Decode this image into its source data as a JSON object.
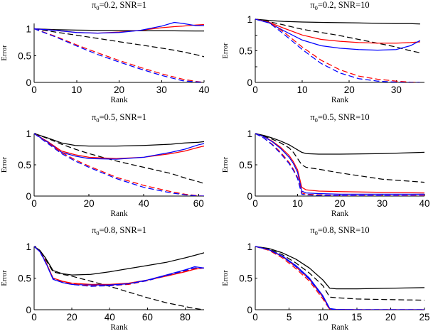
{
  "chart_data": [
    {
      "type": "line",
      "title": "π0=0.2, SNR=1",
      "title_symbol": "π",
      "title_subscript": "0",
      "title_rest": "=0.2, SNR=1",
      "xlabel": "Rank",
      "ylabel": "Error",
      "xlim": [
        0,
        40
      ],
      "ylim": [
        0,
        1.1
      ],
      "xticks": [
        0,
        10,
        20,
        30,
        40
      ],
      "yticks": [
        0,
        0.5,
        1
      ],
      "ytick_labels": [
        "0",
        "0.5",
        "1"
      ],
      "x": [
        0,
        5,
        10,
        15,
        20,
        25,
        30,
        33,
        35,
        38,
        40
      ],
      "series": [
        {
          "color": "#000000",
          "dash": "solid",
          "values": [
            1.0,
            0.985,
            0.975,
            0.97,
            0.967,
            0.965,
            0.963,
            0.962,
            0.961,
            0.96,
            0.96
          ]
        },
        {
          "color": "#000000",
          "dash": "dashed",
          "values": [
            1.0,
            0.94,
            0.88,
            0.82,
            0.76,
            0.7,
            0.64,
            0.6,
            0.57,
            0.52,
            0.48
          ]
        },
        {
          "color": "#ff0000",
          "dash": "solid",
          "values": [
            1.0,
            0.97,
            0.93,
            0.92,
            0.94,
            0.97,
            1.02,
            1.04,
            1.05,
            1.07,
            1.08
          ]
        },
        {
          "color": "#0000ff",
          "dash": "solid",
          "values": [
            1.0,
            0.97,
            0.93,
            0.92,
            0.93,
            0.97,
            1.05,
            1.12,
            1.1,
            1.06,
            1.06
          ]
        },
        {
          "color": "#ff0000",
          "dash": "dashed",
          "values": [
            1.0,
            0.86,
            0.7,
            0.55,
            0.41,
            0.28,
            0.16,
            0.1,
            0.06,
            0.02,
            0.0
          ]
        },
        {
          "color": "#0000ff",
          "dash": "dashed",
          "values": [
            1.0,
            0.85,
            0.68,
            0.52,
            0.38,
            0.25,
            0.13,
            0.07,
            0.03,
            0.01,
            0.0
          ]
        }
      ]
    },
    {
      "type": "line",
      "title": "π0=0.2, SNR=10",
      "title_symbol": "π",
      "title_subscript": "0",
      "title_rest": "=0.2, SNR=10",
      "xlabel": "Rank",
      "ylabel": "Error",
      "xlim": [
        0,
        36
      ],
      "ylim": [
        0,
        1
      ],
      "xticks": [
        0,
        10,
        20,
        30
      ],
      "yticks": [
        0,
        0.25,
        0.5,
        0.75,
        1
      ],
      "ytick_labels": [
        "0",
        "",
        "0.5",
        "",
        "1"
      ],
      "x": [
        0,
        3,
        6,
        10,
        14,
        18,
        22,
        26,
        30,
        33,
        35
      ],
      "series": [
        {
          "color": "#000000",
          "dash": "solid",
          "values": [
            1.0,
            0.98,
            0.965,
            0.955,
            0.95,
            0.945,
            0.94,
            0.935,
            0.93,
            0.93,
            0.925
          ]
        },
        {
          "color": "#000000",
          "dash": "dashed",
          "values": [
            1.0,
            0.96,
            0.91,
            0.84,
            0.79,
            0.74,
            0.68,
            0.62,
            0.56,
            0.5,
            0.47
          ]
        },
        {
          "color": "#ff0000",
          "dash": "solid",
          "values": [
            1.0,
            0.95,
            0.86,
            0.75,
            0.68,
            0.65,
            0.63,
            0.62,
            0.62,
            0.63,
            0.64
          ]
        },
        {
          "color": "#0000ff",
          "dash": "solid",
          "values": [
            1.0,
            0.94,
            0.82,
            0.67,
            0.58,
            0.54,
            0.52,
            0.51,
            0.52,
            0.58,
            0.66
          ]
        },
        {
          "color": "#ff0000",
          "dash": "dashed",
          "values": [
            1.0,
            0.95,
            0.8,
            0.56,
            0.35,
            0.2,
            0.1,
            0.05,
            0.02,
            0.005,
            0.0
          ]
        },
        {
          "color": "#0000ff",
          "dash": "dashed",
          "values": [
            1.0,
            0.94,
            0.77,
            0.52,
            0.3,
            0.15,
            0.06,
            0.02,
            0.005,
            0.0,
            0.0
          ]
        }
      ]
    },
    {
      "type": "line",
      "title": "π0=0.5, SNR=1",
      "title_symbol": "π",
      "title_subscript": "0",
      "title_rest": "=0.5, SNR=1",
      "xlabel": "Rank",
      "ylabel": "Error",
      "xlim": [
        0,
        62
      ],
      "ylim": [
        0,
        1
      ],
      "xticks": [
        0,
        20,
        40,
        60
      ],
      "yticks": [
        0,
        0.5,
        1
      ],
      "ytick_labels": [
        "0",
        "0.5",
        "1"
      ],
      "x": [
        0,
        5,
        10,
        15,
        20,
        30,
        40,
        50,
        55,
        60,
        62
      ],
      "series": [
        {
          "color": "#000000",
          "dash": "solid",
          "values": [
            1.0,
            0.93,
            0.85,
            0.81,
            0.8,
            0.8,
            0.81,
            0.83,
            0.85,
            0.86,
            0.87
          ]
        },
        {
          "color": "#000000",
          "dash": "dashed",
          "values": [
            1.0,
            0.92,
            0.83,
            0.75,
            0.68,
            0.56,
            0.46,
            0.36,
            0.29,
            0.23,
            0.2
          ]
        },
        {
          "color": "#ff0000",
          "dash": "solid",
          "values": [
            1.0,
            0.87,
            0.72,
            0.66,
            0.62,
            0.6,
            0.62,
            0.68,
            0.72,
            0.78,
            0.8
          ]
        },
        {
          "color": "#0000ff",
          "dash": "solid",
          "values": [
            1.0,
            0.86,
            0.7,
            0.64,
            0.6,
            0.59,
            0.62,
            0.7,
            0.75,
            0.82,
            0.84
          ]
        },
        {
          "color": "#ff0000",
          "dash": "dashed",
          "values": [
            1.0,
            0.85,
            0.7,
            0.58,
            0.48,
            0.3,
            0.17,
            0.07,
            0.03,
            0.005,
            0.0
          ]
        },
        {
          "color": "#0000ff",
          "dash": "dashed",
          "values": [
            1.0,
            0.84,
            0.68,
            0.56,
            0.46,
            0.28,
            0.14,
            0.05,
            0.02,
            0.0,
            0.0
          ]
        }
      ]
    },
    {
      "type": "line",
      "title": "π0=0.5, SNR=10",
      "title_symbol": "π",
      "title_subscript": "0",
      "title_rest": "=0.5, SNR=10",
      "xlabel": "Rank",
      "ylabel": "Error",
      "xlim": [
        0,
        40
      ],
      "ylim": [
        0,
        1
      ],
      "xticks": [
        0,
        10,
        20,
        30,
        40
      ],
      "yticks": [
        0,
        0.5,
        1
      ],
      "ytick_labels": [
        "0",
        "0.5",
        "1"
      ],
      "x": [
        0,
        2,
        4,
        6,
        8,
        9,
        10,
        11,
        12,
        15,
        20,
        30,
        40
      ],
      "series": [
        {
          "color": "#000000",
          "dash": "solid",
          "values": [
            1.0,
            0.97,
            0.93,
            0.88,
            0.82,
            0.78,
            0.74,
            0.7,
            0.68,
            0.67,
            0.67,
            0.68,
            0.7
          ]
        },
        {
          "color": "#000000",
          "dash": "dashed",
          "values": [
            1.0,
            0.96,
            0.91,
            0.85,
            0.77,
            0.7,
            0.6,
            0.5,
            0.46,
            0.43,
            0.37,
            0.27,
            0.22
          ]
        },
        {
          "color": "#ff0000",
          "dash": "solid",
          "values": [
            1.0,
            0.95,
            0.88,
            0.78,
            0.65,
            0.55,
            0.42,
            0.14,
            0.1,
            0.08,
            0.07,
            0.06,
            0.05
          ]
        },
        {
          "color": "#0000ff",
          "dash": "solid",
          "values": [
            1.0,
            0.95,
            0.87,
            0.76,
            0.62,
            0.52,
            0.38,
            0.08,
            0.05,
            0.04,
            0.03,
            0.03,
            0.03
          ]
        },
        {
          "color": "#ff0000",
          "dash": "dashed",
          "values": [
            1.0,
            0.93,
            0.83,
            0.7,
            0.54,
            0.43,
            0.3,
            0.05,
            0.03,
            0.02,
            0.01,
            0.01,
            0.01
          ]
        },
        {
          "color": "#0000ff",
          "dash": "dashed",
          "values": [
            1.0,
            0.93,
            0.82,
            0.68,
            0.52,
            0.41,
            0.28,
            0.03,
            0.02,
            0.01,
            0.005,
            0.005,
            0.0
          ]
        }
      ]
    },
    {
      "type": "line",
      "title": "π0=0.8, SNR=1",
      "title_symbol": "π",
      "title_subscript": "0",
      "title_rest": "=0.8, SNR=1",
      "xlabel": "Rank",
      "ylabel": "Error",
      "xlim": [
        0,
        90
      ],
      "ylim": [
        0,
        1
      ],
      "xticks": [
        0,
        20,
        40,
        60,
        80
      ],
      "yticks": [
        0,
        0.5,
        1
      ],
      "ytick_labels": [
        "0",
        "0.5",
        "1"
      ],
      "x": [
        0,
        3,
        6,
        10,
        15,
        20,
        30,
        40,
        50,
        60,
        70,
        80,
        85,
        90
      ],
      "series": [
        {
          "color": "#000000",
          "dash": "solid",
          "values": [
            1.0,
            0.94,
            0.82,
            0.62,
            0.57,
            0.55,
            0.56,
            0.6,
            0.65,
            0.7,
            0.75,
            0.82,
            0.86,
            0.9
          ]
        },
        {
          "color": "#000000",
          "dash": "dashed",
          "values": [
            1.0,
            0.93,
            0.8,
            0.6,
            0.56,
            0.53,
            0.45,
            0.37,
            0.28,
            0.19,
            0.11,
            0.05,
            0.02,
            0.0
          ]
        },
        {
          "color": "#ff0000",
          "dash": "solid",
          "values": [
            1.0,
            0.92,
            0.77,
            0.5,
            0.45,
            0.42,
            0.4,
            0.4,
            0.42,
            0.47,
            0.53,
            0.6,
            0.64,
            0.66
          ]
        },
        {
          "color": "#0000ff",
          "dash": "solid",
          "values": [
            1.0,
            0.92,
            0.76,
            0.48,
            0.43,
            0.4,
            0.39,
            0.39,
            0.41,
            0.47,
            0.55,
            0.63,
            0.68,
            0.66
          ]
        },
        {
          "color": "#ff0000",
          "dash": "dashed",
          "values": [
            1.0,
            0.92,
            0.76,
            0.5,
            0.44,
            0.41,
            0.38,
            0.38,
            0.4,
            0.46,
            0.54,
            0.61,
            0.65,
            0.66
          ]
        },
        {
          "color": "#0000ff",
          "dash": "dashed",
          "values": [
            1.0,
            0.92,
            0.75,
            0.49,
            0.43,
            0.4,
            0.37,
            0.38,
            0.41,
            0.46,
            0.54,
            0.62,
            0.66,
            0.66
          ]
        }
      ]
    },
    {
      "type": "line",
      "title": "π0=0.8, SNR=10",
      "title_symbol": "π",
      "title_subscript": "0",
      "title_rest": "=0.8, SNR=10",
      "xlabel": "Rank",
      "ylabel": "Error",
      "xlim": [
        0,
        25
      ],
      "ylim": [
        0,
        1
      ],
      "xticks": [
        0,
        5,
        10,
        15,
        20,
        25
      ],
      "yticks": [
        0,
        0.5,
        1
      ],
      "ytick_labels": [
        "0",
        "0.5",
        "1"
      ],
      "x": [
        0,
        2,
        4,
        6,
        8,
        10,
        11,
        12,
        15,
        20,
        25
      ],
      "series": [
        {
          "color": "#000000",
          "dash": "solid",
          "values": [
            1.0,
            0.97,
            0.9,
            0.8,
            0.66,
            0.47,
            0.34,
            0.33,
            0.33,
            0.34,
            0.35
          ]
        },
        {
          "color": "#000000",
          "dash": "dashed",
          "values": [
            1.0,
            0.96,
            0.87,
            0.74,
            0.58,
            0.38,
            0.2,
            0.19,
            0.17,
            0.16,
            0.15
          ]
        },
        {
          "color": "#ff0000",
          "dash": "solid",
          "values": [
            1.0,
            0.95,
            0.84,
            0.68,
            0.48,
            0.2,
            0.01,
            0.005,
            0.0,
            0.0,
            0.0
          ]
        },
        {
          "color": "#0000ff",
          "dash": "solid",
          "values": [
            1.0,
            0.95,
            0.85,
            0.7,
            0.5,
            0.22,
            0.02,
            0.005,
            0.0,
            0.0,
            0.0
          ]
        },
        {
          "color": "#ff0000",
          "dash": "dashed",
          "values": [
            1.0,
            0.94,
            0.82,
            0.65,
            0.45,
            0.17,
            0.005,
            0.0,
            0.0,
            0.0,
            0.0
          ]
        },
        {
          "color": "#0000ff",
          "dash": "dashed",
          "values": [
            1.0,
            0.95,
            0.84,
            0.68,
            0.48,
            0.2,
            0.01,
            0.0,
            0.0,
            0.0,
            0.0
          ]
        }
      ]
    }
  ]
}
